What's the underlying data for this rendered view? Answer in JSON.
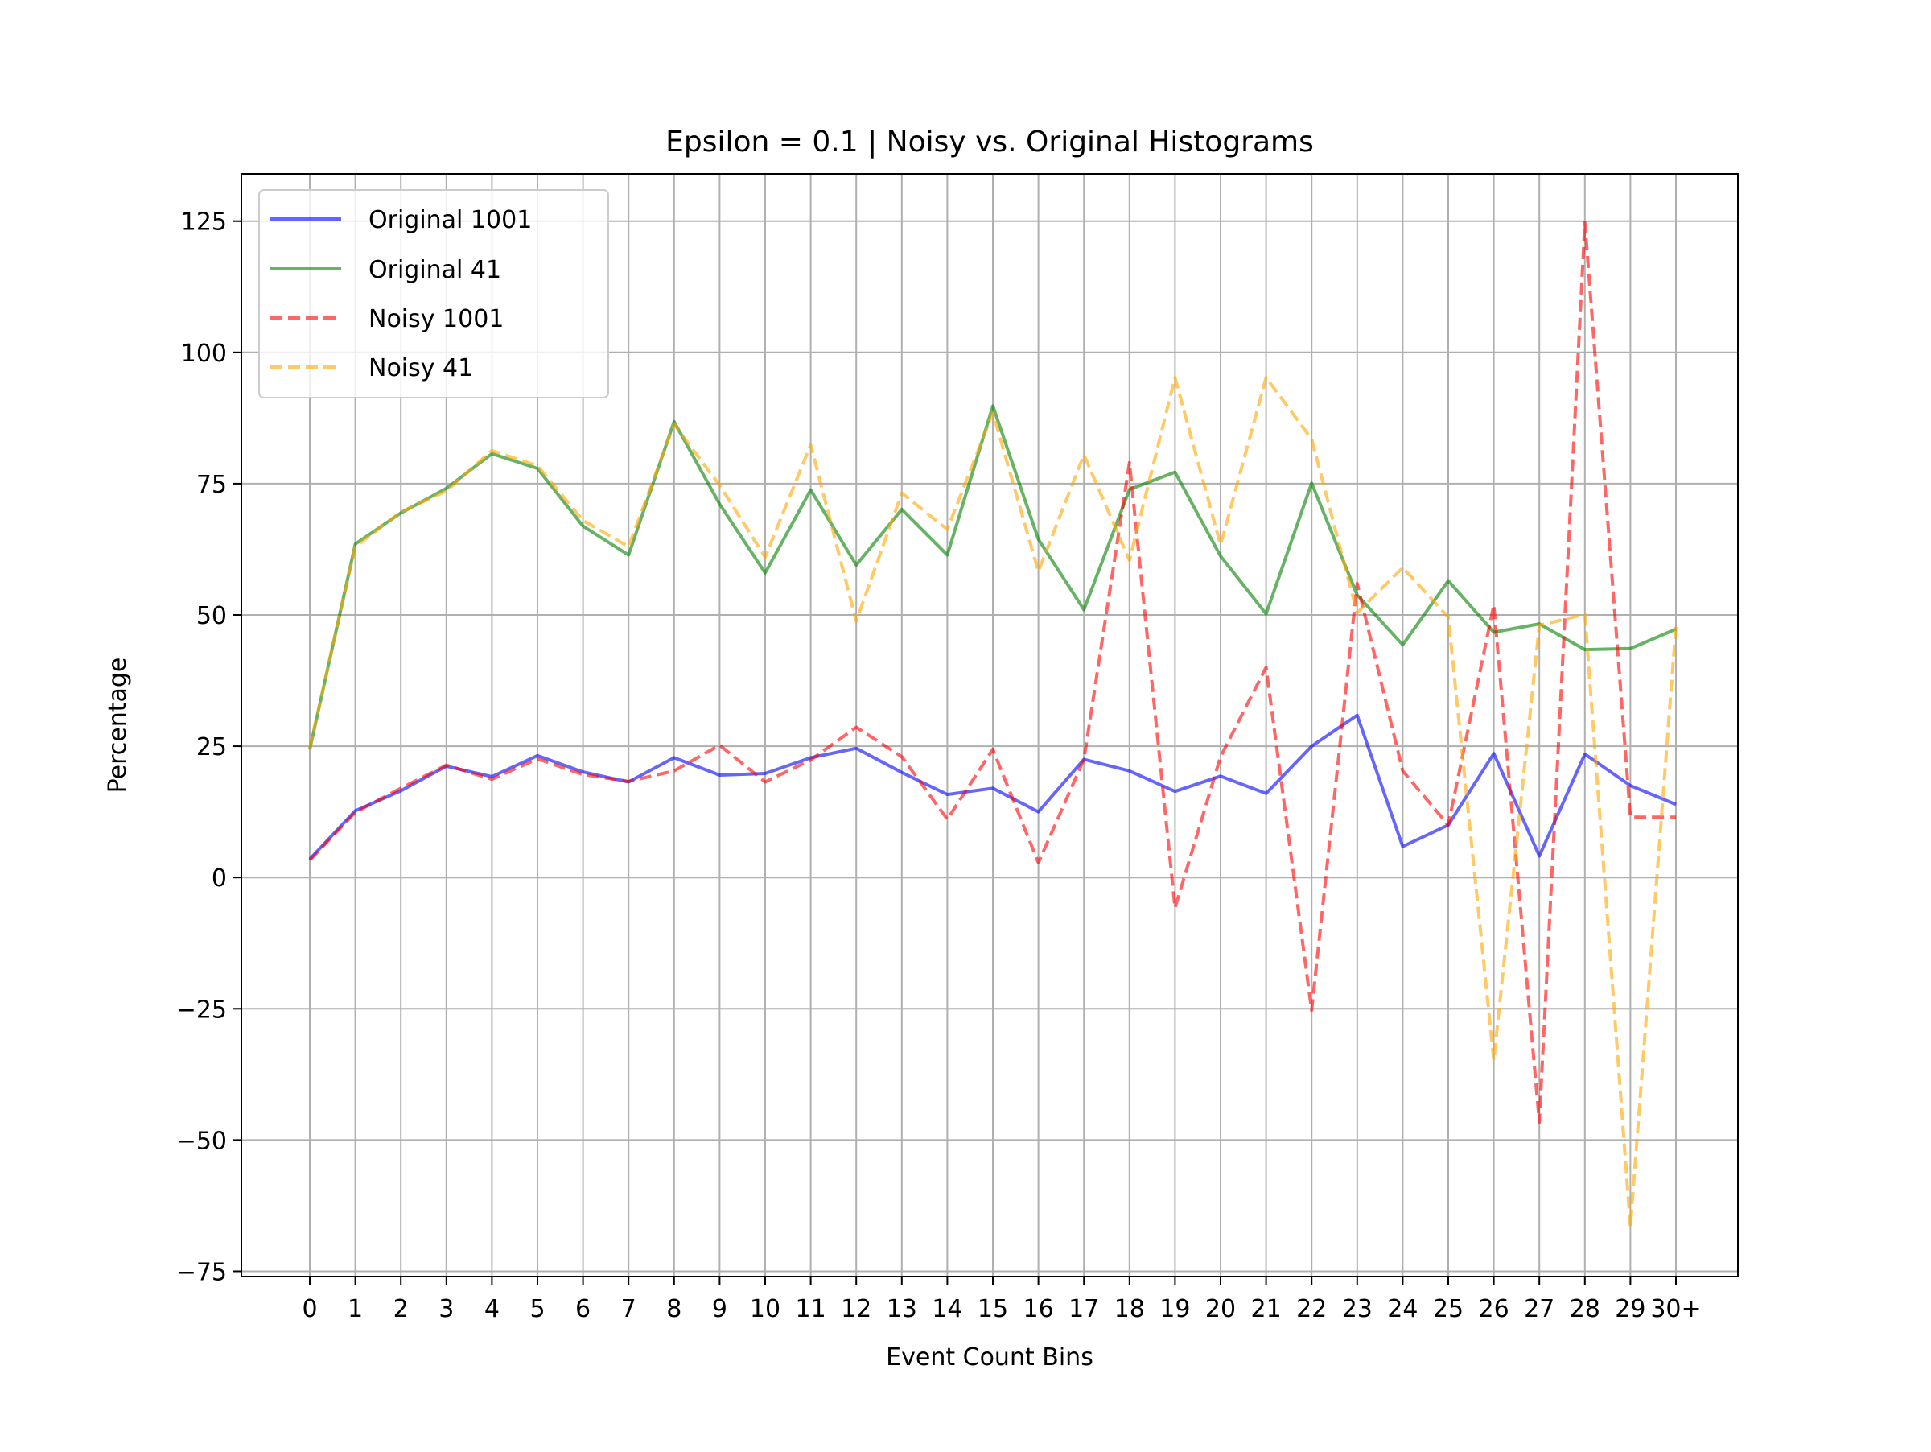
{
  "chart_data": {
    "type": "line",
    "title": "Epsilon = 0.1 | Noisy vs. Original Histograms",
    "xlabel": "Event Count Bins",
    "ylabel": "Percentage",
    "categories": [
      "0",
      "1",
      "2",
      "3",
      "4",
      "5",
      "6",
      "7",
      "8",
      "9",
      "10",
      "11",
      "12",
      "13",
      "14",
      "15",
      "16",
      "17",
      "18",
      "19",
      "20",
      "21",
      "22",
      "23",
      "24",
      "25",
      "26",
      "27",
      "28",
      "29",
      "30+"
    ],
    "ylim": [
      -76,
      134
    ],
    "yticks": [
      -75,
      -50,
      -25,
      0,
      25,
      50,
      75,
      100,
      125
    ],
    "ytick_labels": [
      "−75",
      "−50",
      "−25",
      "0",
      "25",
      "50",
      "75",
      "100",
      "125"
    ],
    "grid": true,
    "legend_position": "top-left",
    "series": [
      {
        "name": "Original 1001",
        "color": "#0000ff",
        "style": "solid",
        "values": [
          3.5,
          12.7,
          16.5,
          21.2,
          19.2,
          23.2,
          20.1,
          18.2,
          22.8,
          19.5,
          19.8,
          22.8,
          24.6,
          20.0,
          15.8,
          17.0,
          12.5,
          22.5,
          20.3,
          16.4,
          19.3,
          16.0,
          25.0,
          30.9,
          5.9,
          10.0,
          23.6,
          4.1,
          23.5,
          17.5,
          13.9
        ]
      },
      {
        "name": "Original 41",
        "color": "#008000",
        "style": "solid",
        "values": [
          24.4,
          63.5,
          69.4,
          74.1,
          80.7,
          77.9,
          66.9,
          61.4,
          86.8,
          71.1,
          58.0,
          73.8,
          59.5,
          70.1,
          61.4,
          89.8,
          64.4,
          51.0,
          73.9,
          77.2,
          61.2,
          50.2,
          75.1,
          53.8,
          44.3,
          56.5,
          46.7,
          48.3,
          43.4,
          43.6,
          47.3
        ]
      },
      {
        "name": "Noisy 1001",
        "color": "#ff0000",
        "style": "dashed",
        "values": [
          3.3,
          12.4,
          17.0,
          21.4,
          18.7,
          22.6,
          19.6,
          18.3,
          20.3,
          25.2,
          18.2,
          22.4,
          28.6,
          23.0,
          11.1,
          24.4,
          2.8,
          22.5,
          79.0,
          -5.8,
          23.0,
          40.0,
          -25.3,
          56.0,
          20.3,
          10.0,
          51.9,
          -46.6,
          124.8,
          11.5,
          11.5
        ]
      },
      {
        "name": "Noisy 41",
        "color": "#ffa500",
        "style": "dashed",
        "values": [
          24.6,
          63.0,
          69.6,
          73.6,
          81.3,
          78.4,
          68.0,
          63.0,
          86.3,
          74.7,
          61.0,
          82.4,
          48.8,
          73.2,
          66.3,
          88.5,
          58.3,
          80.5,
          60.4,
          95.2,
          63.3,
          95.2,
          83.5,
          50.4,
          59.0,
          49.6,
          -34.8,
          48.0,
          50.1,
          -66.5,
          47.9
        ]
      }
    ]
  }
}
